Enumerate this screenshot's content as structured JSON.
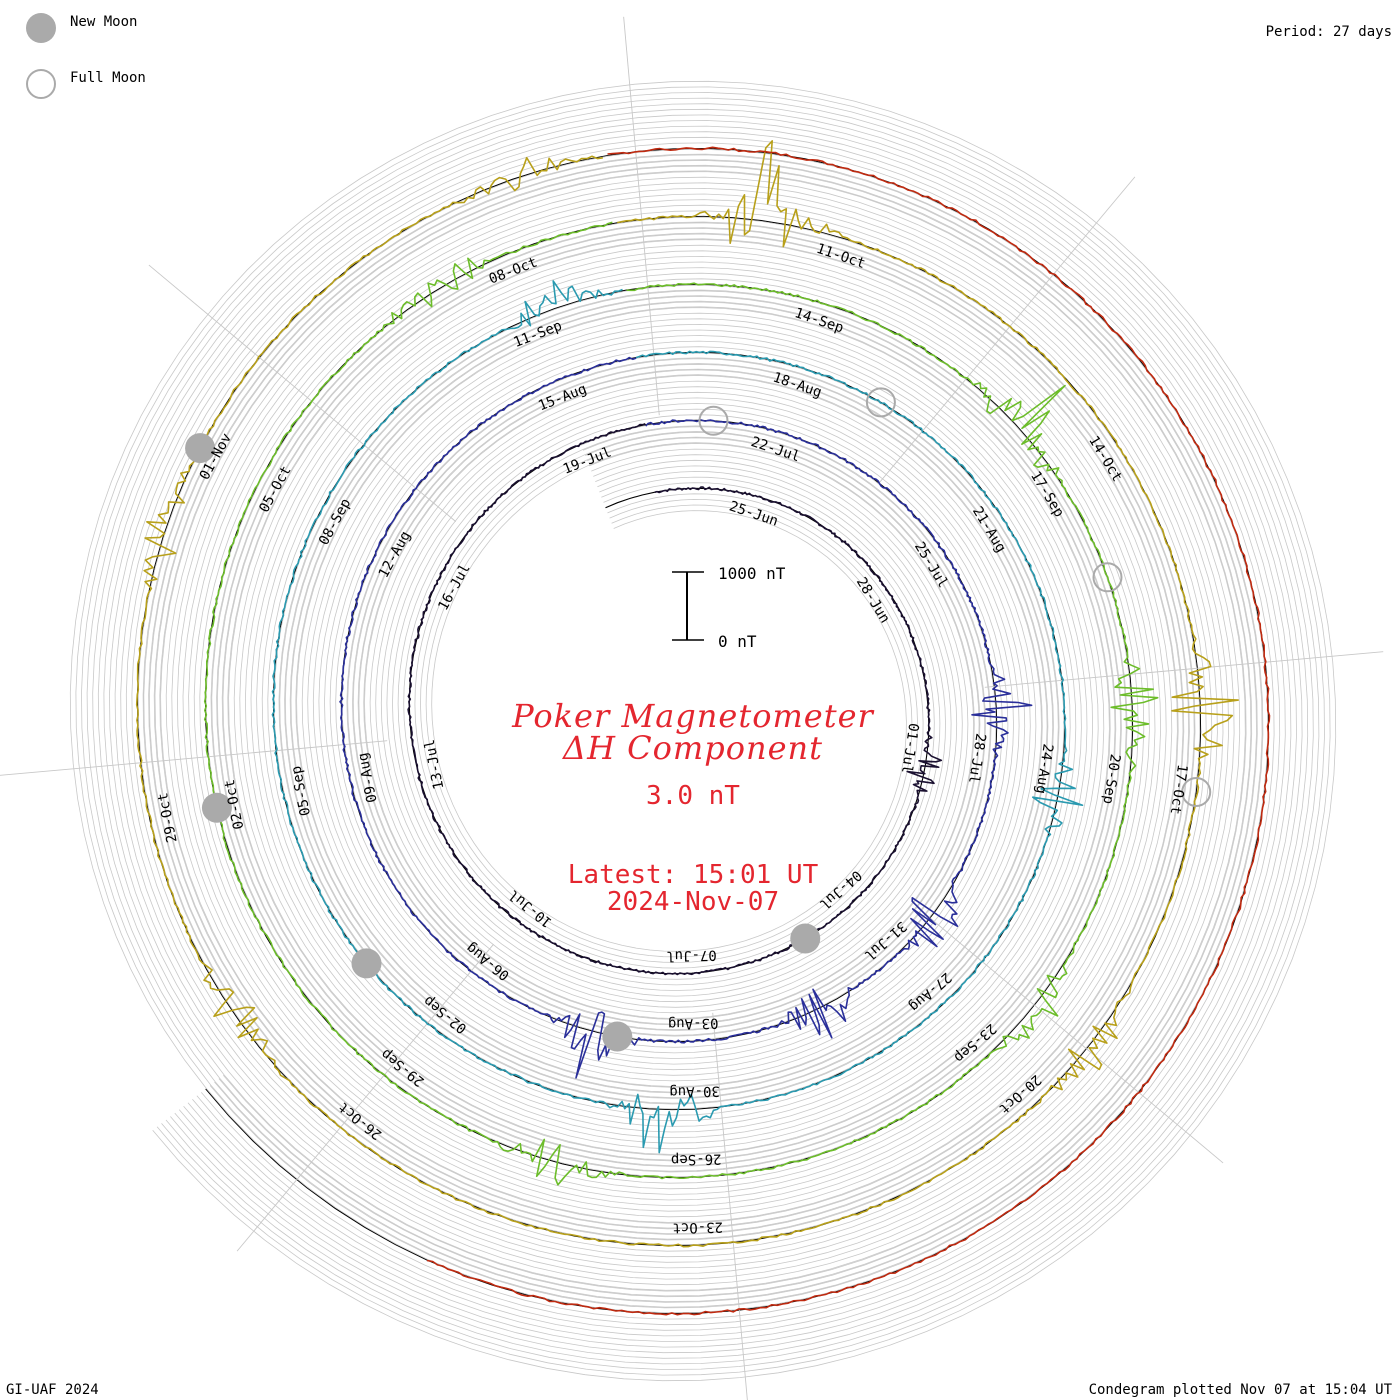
{
  "header": {
    "legend_new_moon": "New Moon",
    "legend_full_moon": "Full Moon",
    "period": "Period: 27 days"
  },
  "footer": {
    "credit": "GI-UAF 2024",
    "plotted": "Condegram plotted Nov 07 at 15:04 UT"
  },
  "center": {
    "title_line1": "Poker Magnetometer",
    "title_line2": "ΔH Component",
    "current_value": "3.0 nT",
    "latest_time": "Latest: 15:01 UT",
    "latest_date": "2024-Nov-07",
    "scale_top": "1000 nT",
    "scale_bottom": "0 nT"
  },
  "colors": {
    "text_red": "#e4262f",
    "grid": "#c8c8c8",
    "moon_fill": "#aaaaaa"
  },
  "chart_data": {
    "type": "line",
    "form": "spiral condegram",
    "title": "Poker Magnetometer ΔH Component",
    "period_days": 27,
    "units": "nT",
    "scale_bar_nT": [
      0,
      1000
    ],
    "current_value_nT": 3.0,
    "date_labels": [
      "25-Jun",
      "28-Jun",
      "01-Jul",
      "04-Jul",
      "07-Jul",
      "10-Jul",
      "13-Jul",
      "16-Jul",
      "19-Jul",
      "22-Jul",
      "25-Jul",
      "28-Jul",
      "31-Jul",
      "03-Aug",
      "06-Aug",
      "09-Aug",
      "12-Aug",
      "15-Aug",
      "18-Aug",
      "21-Aug",
      "24-Aug",
      "27-Aug",
      "30-Aug",
      "02-Sep",
      "05-Sep",
      "08-Sep",
      "11-Sep",
      "14-Sep",
      "17-Sep",
      "20-Sep",
      "23-Sep",
      "26-Sep",
      "29-Sep",
      "02-Oct",
      "05-Oct",
      "08-Oct",
      "11-Oct",
      "14-Oct",
      "17-Oct",
      "20-Oct",
      "23-Oct",
      "26-Oct",
      "29-Oct",
      "01-Nov"
    ],
    "cycles": [
      {
        "start": "23-Jun",
        "color": "#1a1030",
        "baseline_nT": 0
      },
      {
        "start": "20-Jul",
        "color": "#2a2f9a",
        "baseline_nT": 0
      },
      {
        "start": "16-Aug",
        "color": "#2a9ab0",
        "baseline_nT": 0
      },
      {
        "start": "12-Sep",
        "color": "#6cbd2a",
        "baseline_nT": 0
      },
      {
        "start": "09-Oct",
        "color": "#b8a01a",
        "baseline_nT": 0
      },
      {
        "start": "05-Nov",
        "color": "#c02a10",
        "baseline_nT": 0
      }
    ],
    "disturbances": [
      {
        "date": "01-Jul",
        "peak_nT": 400
      },
      {
        "date": "27-Jul",
        "peak_nT": 600
      },
      {
        "date": "30-Jul",
        "peak_nT": 650
      },
      {
        "date": "01-Aug",
        "peak_nT": 700
      },
      {
        "date": "04-Aug",
        "peak_nT": 900
      },
      {
        "date": "24-Aug",
        "peak_nT": 500
      },
      {
        "date": "30-Aug",
        "peak_nT": 750
      },
      {
        "date": "11-Sep",
        "peak_nT": 500
      },
      {
        "date": "16-Sep",
        "peak_nT": 900
      },
      {
        "date": "19-Sep",
        "peak_nT": 700
      },
      {
        "date": "22-Sep",
        "peak_nT": 500
      },
      {
        "date": "27-Sep",
        "peak_nT": 600
      },
      {
        "date": "07-Oct",
        "peak_nT": 650
      },
      {
        "date": "10-Oct",
        "peak_nT": 1100
      },
      {
        "date": "16-Oct",
        "peak_nT": 600
      },
      {
        "date": "19-Oct",
        "peak_nT": 500
      },
      {
        "date": "27-Oct",
        "peak_nT": 400
      },
      {
        "date": "31-Oct",
        "peak_nT": 400
      },
      {
        "date": "04-Nov",
        "peak_nT": 300
      }
    ],
    "new_moons": [
      "05-Jul",
      "04-Aug",
      "03-Sep",
      "02-Oct",
      "01-Nov"
    ],
    "full_moons": [
      "21-Jul",
      "19-Aug",
      "18-Sep",
      "17-Oct"
    ]
  }
}
